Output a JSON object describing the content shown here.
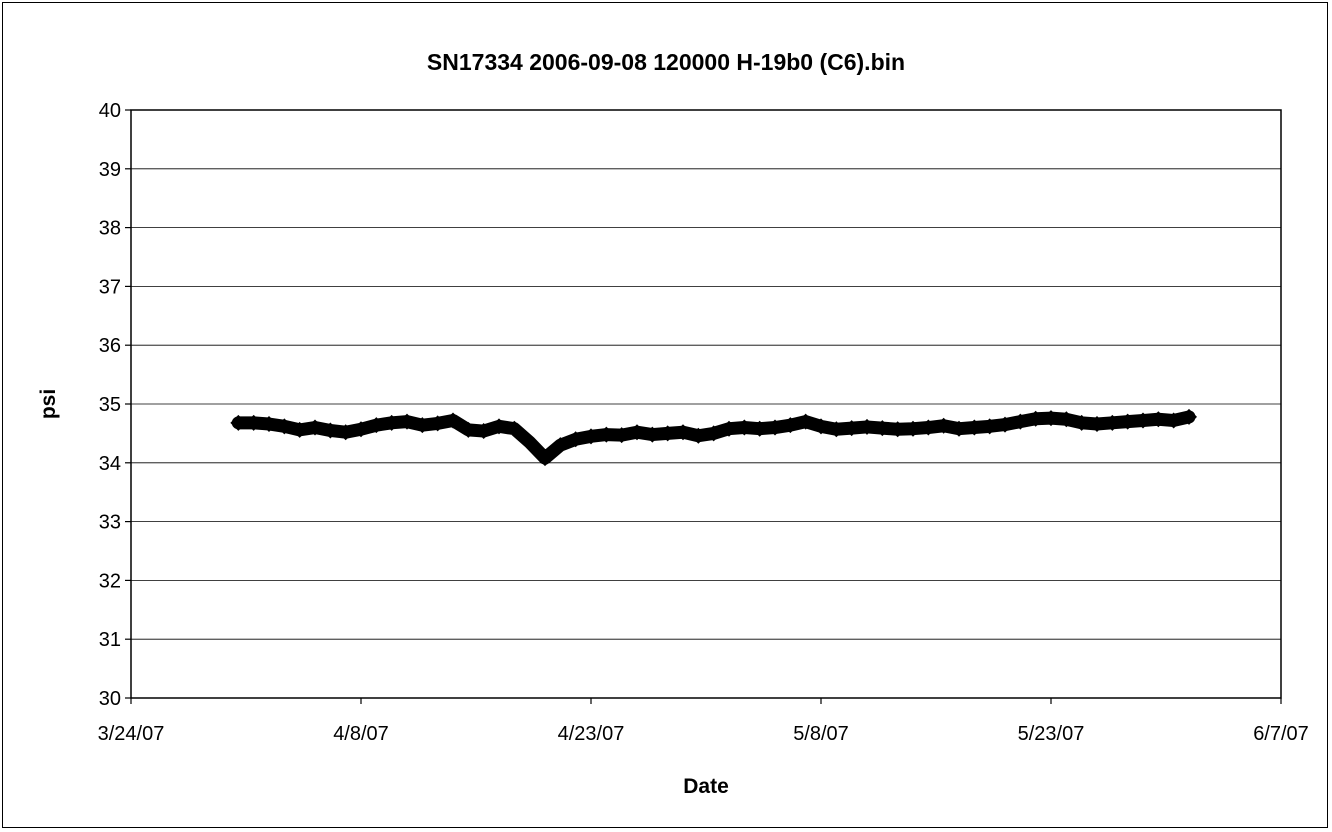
{
  "chart_data": {
    "type": "line",
    "title": "SN17334 2006-09-08 120000 H-19b0 (C6).bin",
    "xlabel": "Date",
    "ylabel": "psi",
    "ylim": [
      30,
      40
    ],
    "yticks": [
      30,
      31,
      32,
      33,
      34,
      35,
      36,
      37,
      38,
      39,
      40
    ],
    "xlim": [
      "2007-03-24",
      "2007-06-07"
    ],
    "xticks": [
      {
        "date": "2007-03-24",
        "label": "3/24/07"
      },
      {
        "date": "2007-04-08",
        "label": "4/8/07"
      },
      {
        "date": "2007-04-23",
        "label": "4/23/07"
      },
      {
        "date": "2007-05-08",
        "label": "5/8/07"
      },
      {
        "date": "2007-05-23",
        "label": "5/23/07"
      },
      {
        "date": "2007-06-07",
        "label": "6/7/07"
      }
    ],
    "grid": "horizontal",
    "marker_color": "#000000",
    "series": [
      {
        "points": [
          [
            "2007-03-31",
            34.68
          ],
          [
            "2007-04-01",
            34.68
          ],
          [
            "2007-04-02",
            34.66
          ],
          [
            "2007-04-03",
            34.62
          ],
          [
            "2007-04-04",
            34.56
          ],
          [
            "2007-04-05",
            34.6
          ],
          [
            "2007-04-06",
            34.55
          ],
          [
            "2007-04-07",
            34.52
          ],
          [
            "2007-04-08",
            34.57
          ],
          [
            "2007-04-09",
            34.64
          ],
          [
            "2007-04-10",
            34.68
          ],
          [
            "2007-04-11",
            34.7
          ],
          [
            "2007-04-12",
            34.64
          ],
          [
            "2007-04-13",
            34.67
          ],
          [
            "2007-04-14",
            34.72
          ],
          [
            "2007-04-15",
            34.56
          ],
          [
            "2007-04-16",
            34.54
          ],
          [
            "2007-04-17",
            34.62
          ],
          [
            "2007-04-18",
            34.58
          ],
          [
            "2007-04-19",
            34.35
          ],
          [
            "2007-04-20",
            34.08
          ],
          [
            "2007-04-21",
            34.3
          ],
          [
            "2007-04-22",
            34.4
          ],
          [
            "2007-04-23",
            34.45
          ],
          [
            "2007-04-24",
            34.48
          ],
          [
            "2007-04-25",
            34.47
          ],
          [
            "2007-04-26",
            34.52
          ],
          [
            "2007-04-27",
            34.48
          ],
          [
            "2007-04-28",
            34.5
          ],
          [
            "2007-04-29",
            34.52
          ],
          [
            "2007-04-30",
            34.46
          ],
          [
            "2007-05-01",
            34.5
          ],
          [
            "2007-05-02",
            34.58
          ],
          [
            "2007-05-03",
            34.6
          ],
          [
            "2007-05-04",
            34.58
          ],
          [
            "2007-05-05",
            34.6
          ],
          [
            "2007-05-06",
            34.64
          ],
          [
            "2007-05-07",
            34.7
          ],
          [
            "2007-05-08",
            34.62
          ],
          [
            "2007-05-09",
            34.57
          ],
          [
            "2007-05-10",
            34.59
          ],
          [
            "2007-05-11",
            34.61
          ],
          [
            "2007-05-12",
            34.59
          ],
          [
            "2007-05-13",
            34.57
          ],
          [
            "2007-05-14",
            34.58
          ],
          [
            "2007-05-15",
            34.6
          ],
          [
            "2007-05-16",
            34.63
          ],
          [
            "2007-05-17",
            34.58
          ],
          [
            "2007-05-18",
            34.6
          ],
          [
            "2007-05-19",
            34.62
          ],
          [
            "2007-05-20",
            34.65
          ],
          [
            "2007-05-21",
            34.7
          ],
          [
            "2007-05-22",
            34.75
          ],
          [
            "2007-05-23",
            34.76
          ],
          [
            "2007-05-24",
            34.74
          ],
          [
            "2007-05-25",
            34.68
          ],
          [
            "2007-05-26",
            34.66
          ],
          [
            "2007-05-27",
            34.68
          ],
          [
            "2007-05-28",
            34.7
          ],
          [
            "2007-05-29",
            34.72
          ],
          [
            "2007-05-30",
            34.74
          ],
          [
            "2007-05-31",
            34.72
          ],
          [
            "2007-06-01",
            34.78
          ]
        ]
      }
    ]
  }
}
